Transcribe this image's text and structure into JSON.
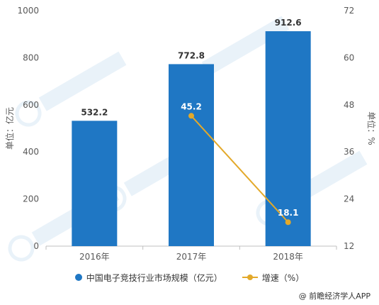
{
  "chart_data": {
    "type": "bar",
    "categories": [
      "2016年",
      "2017年",
      "2018年"
    ],
    "series": [
      {
        "name": "中国电子竞技行业市场规模（亿元）",
        "type": "bar",
        "axis": "left",
        "values": [
          532.2,
          772.8,
          912.6
        ],
        "labels": [
          "532.2",
          "772.8",
          "912.6"
        ],
        "color": "#1f77c4"
      },
      {
        "name": "增速（%）",
        "type": "line",
        "axis": "right",
        "values": [
          null,
          45.2,
          18.1
        ],
        "labels": [
          "",
          "45.2",
          "18.1"
        ],
        "color": "#e3a92a"
      }
    ],
    "ylabel_left": "单位：亿元",
    "ylabel_right": "单位：%",
    "ylim_left": [
      0,
      1000
    ],
    "yticks_left": [
      "0",
      "200",
      "400",
      "600",
      "800",
      "1000"
    ],
    "ylim_right": [
      12,
      72
    ],
    "yticks_right": [
      "12",
      "24",
      "36",
      "48",
      "60",
      "72"
    ],
    "grid": false,
    "legend_position": "bottom"
  },
  "legend": {
    "bar_label": "中国电子竞技行业市场规模（亿元）",
    "line_label": "增速（%）"
  },
  "source": "@ 前瞻经济学人APP"
}
